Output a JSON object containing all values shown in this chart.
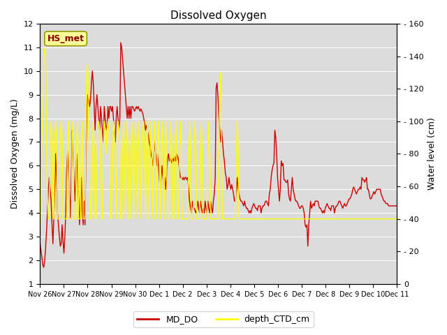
{
  "title": "Dissolved Oxygen",
  "ylabel_left": "Dissolved Oxygen (mg/L)",
  "ylabel_right": "Water level (cm)",
  "ylim_left": [
    1.0,
    12.0
  ],
  "ylim_right": [
    0,
    160
  ],
  "yticks_left": [
    1.0,
    2.0,
    3.0,
    4.0,
    5.0,
    6.0,
    7.0,
    8.0,
    9.0,
    10.0,
    11.0,
    12.0
  ],
  "yticks_right": [
    0,
    20,
    40,
    60,
    80,
    100,
    120,
    140,
    160
  ],
  "annotation_text": "HS_met",
  "annotation_color": "#8B0000",
  "annotation_bg": "#FFFF99",
  "line_do_color": "#CC0000",
  "line_depth_color": "#FFFF00",
  "legend_do": "MD_DO",
  "legend_depth": "depth_CTD_cm",
  "bg_color": "#DCDCDC",
  "do_data": [
    2.7,
    2.4,
    2.1,
    1.8,
    1.7,
    2.0,
    2.5,
    3.2,
    4.0,
    5.0,
    5.5,
    5.0,
    4.5,
    3.5,
    2.7,
    3.8,
    5.0,
    6.5,
    5.5,
    4.0,
    3.5,
    3.0,
    2.6,
    2.7,
    3.5,
    2.8,
    2.3,
    3.0,
    4.0,
    5.9,
    6.6,
    5.7,
    4.8,
    3.8,
    5.5,
    7.5,
    6.5,
    5.5,
    4.5,
    5.5,
    6.5,
    5.5,
    4.5,
    3.5,
    4.5,
    5.5,
    4.0,
    3.5,
    4.5,
    3.5,
    6.5,
    8.5,
    9.0,
    8.8,
    8.5,
    8.8,
    9.5,
    10.0,
    9.5,
    8.5,
    7.5,
    8.5,
    9.0,
    8.5,
    8.0,
    7.5,
    8.5,
    8.0,
    7.5,
    7.0,
    8.5,
    8.0,
    7.6,
    7.5,
    8.5,
    8.0,
    8.5,
    8.5,
    8.3,
    8.5,
    8.0,
    7.5,
    7.0,
    8.0,
    8.5,
    8.0,
    7.5,
    8.0,
    11.2,
    11.0,
    10.5,
    10.0,
    9.5,
    9.0,
    8.5,
    8.0,
    8.5,
    8.0,
    8.5,
    8.0,
    8.5,
    8.5,
    8.4,
    8.3,
    8.4,
    8.5,
    8.4,
    8.5,
    8.4,
    8.3,
    8.4,
    8.3,
    8.2,
    8.0,
    7.8,
    7.5,
    7.7,
    7.5,
    7.3,
    7.0,
    6.8,
    6.5,
    6.3,
    6.0,
    6.5,
    7.0,
    6.5,
    6.0,
    6.5,
    6.0,
    5.5,
    5.0,
    5.5,
    6.0,
    5.5,
    5.0,
    5.5,
    5.0,
    5.5,
    6.3,
    6.5,
    6.2,
    6.3,
    6.2,
    6.1,
    6.3,
    6.2,
    6.4,
    6.2,
    6.5,
    6.4,
    6.2,
    5.8,
    5.5,
    5.5,
    5.4,
    5.5,
    5.4,
    5.5,
    5.5,
    5.4,
    5.5,
    5.0,
    4.5,
    4.2,
    4.0,
    4.5,
    4.2,
    4.2,
    4.1,
    4.0,
    4.2,
    4.5,
    4.2,
    4.0,
    4.5,
    4.2,
    4.0,
    4.2,
    4.0,
    4.5,
    4.2,
    4.0,
    4.5,
    4.2,
    4.0,
    4.5,
    4.2,
    4.0,
    4.5,
    4.8,
    5.5,
    9.3,
    9.5,
    8.9,
    8.0,
    7.5,
    7.0,
    7.5,
    7.0,
    6.5,
    6.2,
    5.7,
    5.5,
    5.0,
    5.2,
    5.5,
    5.2,
    5.0,
    5.2,
    5.0,
    4.8,
    4.5,
    4.5,
    5.0,
    5.5,
    5.0,
    4.8,
    4.6,
    4.5,
    4.5,
    4.4,
    4.3,
    4.5,
    4.3,
    4.2,
    4.2,
    4.1,
    4.0,
    4.1,
    4.0,
    4.2,
    4.3,
    4.4,
    4.3,
    4.2,
    4.2,
    4.1,
    4.3,
    4.3,
    4.3,
    4.0,
    4.2,
    4.3,
    4.3,
    4.4,
    4.5,
    4.5,
    4.4,
    4.3,
    4.8,
    5.0,
    5.5,
    5.8,
    6.0,
    6.1,
    7.5,
    7.2,
    6.5,
    5.5,
    5.0,
    4.5,
    5.0,
    6.2,
    6.0,
    6.1,
    5.4,
    5.4,
    5.3,
    5.3,
    5.4,
    4.8,
    4.6,
    4.5,
    5.0,
    5.5,
    5.0,
    4.8,
    4.6,
    4.5,
    4.5,
    4.4,
    4.3,
    4.2,
    4.2,
    4.3,
    4.3,
    4.2,
    4.0,
    3.5,
    3.4,
    3.5,
    2.6,
    3.5,
    4.0,
    4.5,
    4.2,
    4.3,
    4.4,
    4.3,
    4.5,
    4.5,
    4.5,
    4.5,
    4.3,
    4.2,
    4.2,
    4.1,
    4.0,
    4.1,
    4.0,
    4.2,
    4.3,
    4.4,
    4.3,
    4.2,
    4.2,
    4.1,
    4.3,
    4.3,
    4.3,
    4.0,
    4.2,
    4.3,
    4.3,
    4.4,
    4.5,
    4.5,
    4.4,
    4.3,
    4.2,
    4.3,
    4.4,
    4.3,
    4.3,
    4.4,
    4.5,
    4.6,
    4.6,
    4.7,
    4.8,
    5.0,
    5.1,
    5.0,
    4.9,
    4.8,
    4.9,
    5.0,
    5.0,
    5.1,
    5.0,
    5.5,
    5.4,
    5.4,
    5.3,
    5.4,
    5.5,
    5.0,
    5.0,
    4.8,
    4.6,
    4.6,
    4.7,
    4.8,
    4.9,
    4.8,
    4.9,
    5.0,
    5.0,
    5.0,
    5.0,
    5.0,
    4.8,
    4.7,
    4.6,
    4.5,
    4.5,
    4.4,
    4.4,
    4.4,
    4.3,
    4.3,
    4.3,
    4.3,
    4.3,
    4.3,
    4.3,
    4.3,
    4.3,
    4.3
  ],
  "depth_data": [
    35,
    53,
    90,
    100,
    140,
    145,
    140,
    90,
    55,
    40,
    40,
    90,
    100,
    90,
    40,
    40,
    90,
    100,
    90,
    40,
    40,
    40,
    90,
    100,
    90,
    40,
    40,
    40,
    40,
    40,
    90,
    100,
    40,
    40,
    40,
    90,
    100,
    40,
    40,
    40,
    90,
    100,
    40,
    40,
    40,
    90,
    100,
    40,
    40,
    40,
    90,
    130,
    135,
    100,
    80,
    40,
    40,
    80,
    100,
    80,
    40,
    40,
    80,
    95,
    100,
    95,
    80,
    40,
    40,
    80,
    100,
    95,
    80,
    95,
    100,
    95,
    80,
    40,
    40,
    80,
    100,
    95,
    80,
    40,
    80,
    100,
    95,
    80,
    40,
    40,
    80,
    100,
    80,
    40,
    80,
    100,
    80,
    40,
    40,
    80,
    100,
    80,
    40,
    80,
    100,
    80,
    40,
    80,
    100,
    80,
    40,
    80,
    95,
    100,
    80,
    40,
    80,
    100,
    80,
    40,
    80,
    100,
    80,
    40,
    80,
    100,
    80,
    40,
    80,
    100,
    80,
    40,
    80,
    100,
    80,
    40,
    80,
    100,
    80,
    40,
    40,
    40,
    80,
    100,
    80,
    40,
    40,
    80,
    100,
    80,
    40,
    40,
    80,
    100,
    80,
    40,
    40,
    40,
    40,
    40,
    40,
    40,
    80,
    100,
    80,
    40,
    40,
    40,
    80,
    100,
    80,
    40,
    40,
    40,
    40,
    80,
    100,
    80,
    40,
    40,
    40,
    40,
    40,
    80,
    100,
    80,
    40,
    40,
    40,
    40,
    40,
    40,
    40,
    40,
    40,
    80,
    120,
    130,
    80,
    40,
    40,
    40,
    40,
    40,
    40,
    40,
    40,
    40,
    40,
    40,
    40,
    40,
    40,
    40,
    80,
    100,
    80,
    40,
    40,
    40,
    40,
    40,
    40,
    40,
    40,
    40,
    40,
    40,
    40,
    40,
    40,
    40,
    40,
    40,
    40,
    40,
    40,
    40,
    40,
    40,
    40,
    40,
    40,
    40,
    40,
    40,
    40,
    40,
    40,
    40,
    40,
    40,
    40,
    40,
    40,
    40,
    40,
    40,
    40,
    40,
    40,
    40,
    40,
    40,
    40,
    40,
    40,
    40,
    40,
    40,
    40,
    40,
    40,
    40,
    40,
    40,
    40,
    40,
    40,
    40,
    40,
    40,
    40,
    40,
    40,
    40,
    40,
    40,
    40,
    40,
    40,
    40,
    40,
    40,
    40,
    40,
    40,
    40,
    40,
    40,
    40,
    40,
    40,
    40,
    40,
    40,
    40,
    40,
    40,
    40,
    40,
    40,
    40,
    40,
    40,
    40,
    40,
    40,
    40,
    40,
    40,
    40,
    40,
    40,
    40,
    40,
    40,
    40,
    40,
    40,
    40,
    40,
    40,
    40,
    40,
    40,
    40,
    40,
    40,
    40,
    40,
    40,
    40,
    40,
    40,
    40,
    40,
    40,
    40,
    40,
    40,
    40,
    40,
    40,
    40,
    40,
    40,
    40,
    40,
    40,
    40,
    40,
    40,
    40,
    40,
    40,
    40,
    40,
    40,
    40,
    40,
    40,
    40,
    40,
    40,
    40,
    40,
    40,
    40,
    40,
    40,
    40,
    40,
    40,
    40,
    40,
    40,
    40,
    40,
    40
  ]
}
